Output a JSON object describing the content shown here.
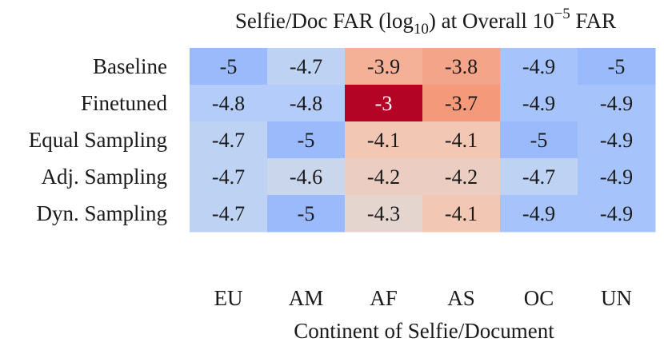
{
  "chart_data": {
    "type": "heatmap",
    "title_main": "Selfie/Doc FAR (log",
    "title_sub": "10",
    "title_mid": ") at Overall 10",
    "title_sup": "−5",
    "title_end": " FAR",
    "xlabel": "Continent of Selfie/Document",
    "ylabel": "",
    "columns": [
      "EU",
      "AM",
      "AF",
      "AS",
      "OC",
      "UN"
    ],
    "rows": [
      "Baseline",
      "Finetuned",
      "Equal Sampling",
      "Adj. Sampling",
      "Dyn. Sampling"
    ],
    "values": [
      [
        -5,
        -4.7,
        -3.9,
        -3.8,
        -4.9,
        -5
      ],
      [
        -4.8,
        -4.8,
        -3,
        -3.7,
        -4.9,
        -4.9
      ],
      [
        -4.7,
        -5,
        -4.1,
        -4.1,
        -5,
        -4.9
      ],
      [
        -4.7,
        -4.6,
        -4.2,
        -4.2,
        -4.7,
        -4.9
      ],
      [
        -4.7,
        -5,
        -4.3,
        -4.1,
        -4.9,
        -4.9
      ]
    ],
    "labels": [
      [
        "-5",
        "-4.7",
        "-3.9",
        "-3.8",
        "-4.9",
        "-5"
      ],
      [
        "-4.8",
        "-4.8",
        "-3",
        "-3.7",
        "-4.9",
        "-4.9"
      ],
      [
        "-4.7",
        "-5",
        "-4.1",
        "-4.1",
        "-5",
        "-4.9"
      ],
      [
        "-4.7",
        "-4.6",
        "-4.2",
        "-4.2",
        "-4.7",
        "-4.9"
      ],
      [
        "-4.7",
        "-5",
        "-4.3",
        "-4.1",
        "-4.9",
        "-4.9"
      ]
    ],
    "colorscale": "coolwarm",
    "vmin": -5,
    "vmax": -3,
    "colorbar": false,
    "grid": false
  }
}
